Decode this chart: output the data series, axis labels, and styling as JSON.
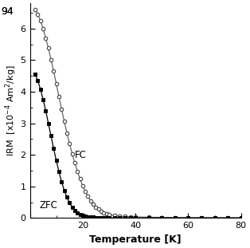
{
  "title": "",
  "xlabel": "Temperature [K]",
  "xlim": [
    0,
    80
  ],
  "ylim": [
    0,
    6.8
  ],
  "yticks": [
    0,
    1,
    2,
    3,
    4,
    5,
    6
  ],
  "xticks": [
    0,
    20,
    40,
    60,
    80
  ],
  "xticklabels": [
    "",
    "20",
    "40",
    "60",
    "80"
  ],
  "fc_label": "FC",
  "zfc_label": "ZFC",
  "background": "#ffffff",
  "fc_T": [
    2,
    3,
    4,
    5,
    6,
    7,
    8,
    9,
    10,
    11,
    12,
    13,
    14,
    15,
    16,
    17,
    18,
    19,
    20,
    21,
    22,
    23,
    24,
    25,
    26,
    27,
    28,
    29,
    30,
    32,
    34,
    36,
    38,
    40,
    45,
    50,
    55,
    60,
    65,
    70,
    75,
    80
  ],
  "fc_IRM": [
    6.6,
    6.45,
    6.25,
    6.0,
    5.7,
    5.38,
    5.02,
    4.65,
    4.25,
    3.85,
    3.45,
    3.07,
    2.7,
    2.36,
    2.04,
    1.75,
    1.48,
    1.24,
    1.02,
    0.84,
    0.68,
    0.55,
    0.44,
    0.35,
    0.28,
    0.22,
    0.17,
    0.14,
    0.11,
    0.08,
    0.06,
    0.05,
    0.04,
    0.035,
    0.025,
    0.02,
    0.016,
    0.014,
    0.012,
    0.011,
    0.01,
    0.009
  ],
  "zfc_T": [
    2,
    3,
    4,
    5,
    6,
    7,
    8,
    9,
    10,
    11,
    12,
    13,
    14,
    15,
    16,
    17,
    18,
    19,
    20,
    21,
    22,
    23,
    24,
    25,
    26,
    27,
    28,
    29,
    30,
    32,
    34,
    36,
    38,
    40,
    45,
    50,
    55,
    60,
    65,
    70,
    75,
    80
  ],
  "zfc_IRM": [
    4.55,
    4.35,
    4.08,
    3.76,
    3.4,
    3.0,
    2.6,
    2.2,
    1.82,
    1.47,
    1.15,
    0.88,
    0.66,
    0.48,
    0.34,
    0.24,
    0.17,
    0.12,
    0.085,
    0.062,
    0.046,
    0.035,
    0.027,
    0.021,
    0.017,
    0.014,
    0.012,
    0.01,
    0.009,
    0.007,
    0.006,
    0.005,
    0.005,
    0.004,
    0.003,
    0.003,
    0.003,
    0.002,
    0.002,
    0.002,
    0.002,
    0.002
  ],
  "corner_text": "94",
  "figsize": [
    3.14,
    3.11
  ],
  "dpi": 100
}
